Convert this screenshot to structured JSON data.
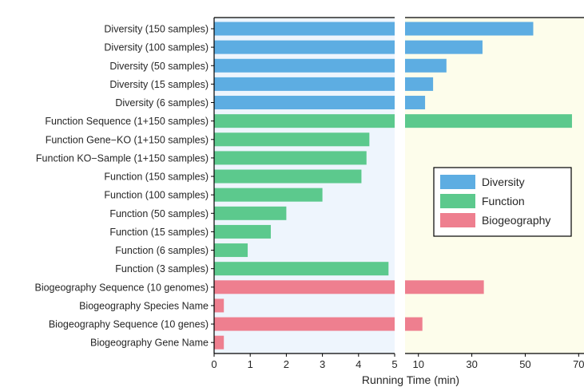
{
  "chart_data": {
    "type": "bar",
    "orientation": "horizontal",
    "broken_axis": true,
    "xlabel": "Running Time (min)",
    "x_left_ticks": [
      "0",
      "1",
      "2",
      "3",
      "4",
      "5"
    ],
    "x_right_ticks": [
      "10",
      "30",
      "50",
      "70"
    ],
    "x_left_range": [
      0,
      5
    ],
    "x_right_range": [
      5,
      72
    ],
    "left_panel_background": "#eef5fd",
    "right_panel_background": "#fdfdeb",
    "legend": {
      "placement": "center-right",
      "entries": [
        {
          "label": "Diversity",
          "color": "#5dade2"
        },
        {
          "label": "Function",
          "color": "#5cc98d"
        },
        {
          "label": "Biogeography",
          "color": "#ee7f8f"
        }
      ]
    },
    "categories": [
      {
        "label": "Diversity (150 samples)",
        "group": 0,
        "value": 53
      },
      {
        "label": "Diversity (100 samples)",
        "group": 0,
        "value": 34
      },
      {
        "label": "Diversity (50 samples)",
        "group": 0,
        "value": 20.5
      },
      {
        "label": "Diversity (15 samples)",
        "group": 0,
        "value": 15.5
      },
      {
        "label": "Diversity (6 samples)",
        "group": 0,
        "value": 12.5
      },
      {
        "label": "Function Sequence (1+150 samples)",
        "group": 1,
        "value": 67.5
      },
      {
        "label": "Function Gene−KO (1+150 samples)",
        "group": 1,
        "value": 4.3
      },
      {
        "label": "Function KO−Sample (1+150 samples)",
        "group": 1,
        "value": 4.22
      },
      {
        "label": "Function (150 samples)",
        "group": 1,
        "value": 4.08
      },
      {
        "label": "Function (100 samples)",
        "group": 1,
        "value": 3.0
      },
      {
        "label": "Function (50 samples)",
        "group": 1,
        "value": 2.0
      },
      {
        "label": "Function (15 samples)",
        "group": 1,
        "value": 1.57
      },
      {
        "label": "Function (6 samples)",
        "group": 1,
        "value": 0.93
      },
      {
        "label": "Function (3 samples)",
        "group": 1,
        "value": 4.83
      },
      {
        "label": "Biogeography Sequence (10 genomes)",
        "group": 2,
        "value": 34.5
      },
      {
        "label": "Biogeography Species Name",
        "group": 2,
        "value": 0.27
      },
      {
        "label": "Biogeography Sequence (10 genes)",
        "group": 2,
        "value": 11.5
      },
      {
        "label": "Biogeography Gene Name",
        "group": 2,
        "value": 0.27
      }
    ]
  }
}
